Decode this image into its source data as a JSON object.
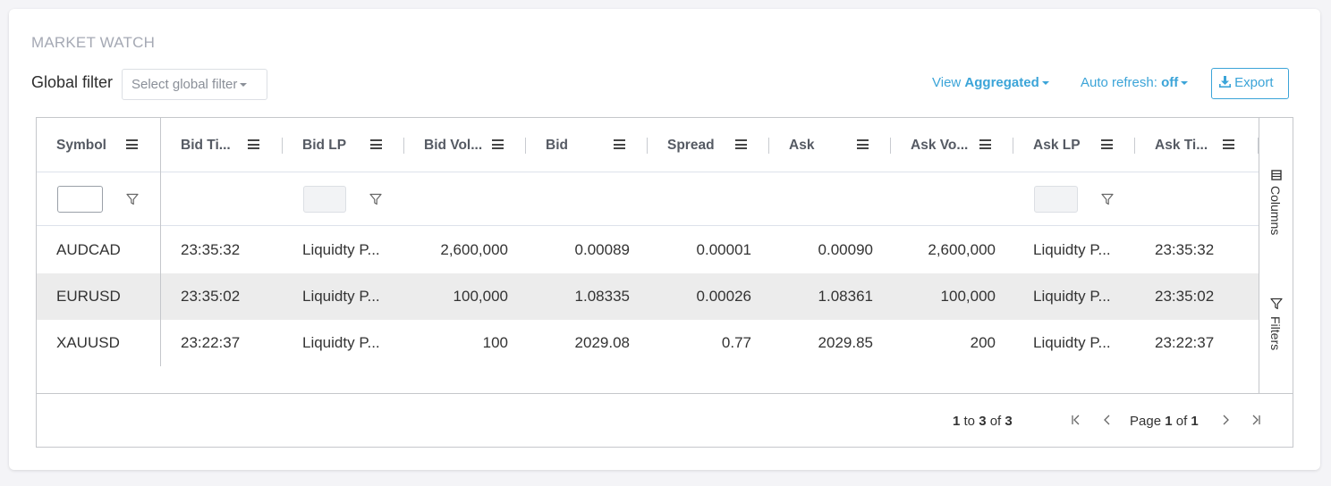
{
  "panel": {
    "title": "MARKET WATCH"
  },
  "global_filter": {
    "label": "Global filter",
    "placeholder": "Select global filter"
  },
  "toolbar": {
    "view_prefix": "View",
    "view_value": "Aggregated",
    "auto_refresh_prefix": "Auto refresh:",
    "auto_refresh_value": "off",
    "export_label": "Export"
  },
  "columns": [
    "Symbol",
    "Bid Ti...",
    "Bid LP",
    "Bid Vol...",
    "Bid",
    "Spread",
    "Ask",
    "Ask Vo...",
    "Ask LP",
    "Ask Ti..."
  ],
  "rows": [
    {
      "symbol": "AUDCAD",
      "bid_time": "23:35:32",
      "bid_lp": "Liquidty P...",
      "bid_volume": "2,600,000",
      "bid": "0.00089",
      "spread": "0.00001",
      "ask": "0.00090",
      "ask_volume": "2,600,000",
      "ask_lp": "Liquidty P...",
      "ask_time": "23:35:32"
    },
    {
      "symbol": "EURUSD",
      "bid_time": "23:35:02",
      "bid_lp": "Liquidty P...",
      "bid_volume": "100,000",
      "bid": "1.08335",
      "spread": "0.00026",
      "ask": "1.08361",
      "ask_volume": "100,000",
      "ask_lp": "Liquidty P...",
      "ask_time": "23:35:02"
    },
    {
      "symbol": "XAUUSD",
      "bid_time": "23:22:37",
      "bid_lp": "Liquidty P...",
      "bid_volume": "100",
      "bid": "2029.08",
      "spread": "0.77",
      "ask": "2029.85",
      "ask_volume": "200",
      "ask_lp": "Liquidty P...",
      "ask_time": "23:22:37"
    }
  ],
  "side_bar": {
    "columns_label": "Columns",
    "filters_label": "Filters"
  },
  "pagination": {
    "row_start": "1",
    "to_word": "to",
    "row_end": "3",
    "of_word": "of",
    "row_total": "3",
    "page_word": "Page",
    "page_current": "1",
    "page_of_word": "of",
    "page_total": "1"
  },
  "colors": {
    "accent": "#3ba4d8",
    "selected_row": "#ececec",
    "title": "#a5a9b4"
  }
}
